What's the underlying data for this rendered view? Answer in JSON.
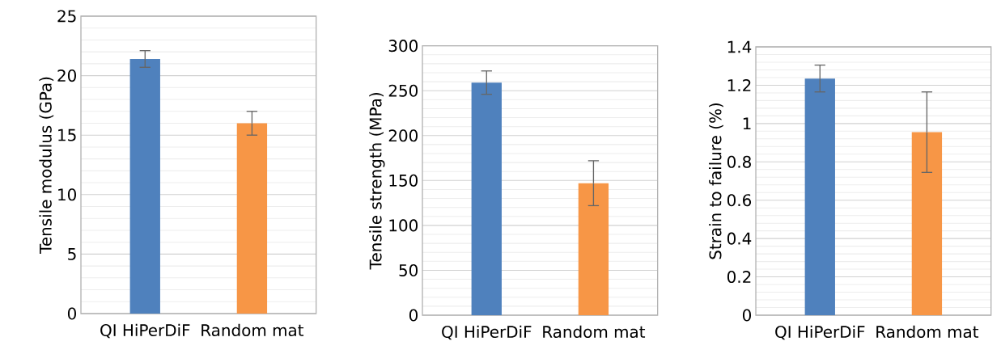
{
  "chart_data": [
    {
      "type": "bar",
      "categories": [
        "QI HiPerDiF",
        "Random mat"
      ],
      "values": [
        21.4,
        16.0
      ],
      "colors": [
        "#4f81bd",
        "#f79646"
      ],
      "errors": [
        0.7,
        1.0
      ],
      "ylabel": "Tensile modulus (GPa)",
      "ylim": [
        0,
        25
      ],
      "yticks": [
        0,
        5,
        10,
        15,
        20,
        25
      ],
      "grid": "y"
    },
    {
      "type": "bar",
      "categories": [
        "QI HiPerDiF",
        "Random mat"
      ],
      "values": [
        259,
        147
      ],
      "colors": [
        "#4f81bd",
        "#f79646"
      ],
      "errors": [
        13,
        25
      ],
      "ylabel": "Tensile strength (MPa)",
      "ylim": [
        0,
        300
      ],
      "yticks": [
        0,
        50,
        100,
        150,
        200,
        250,
        300
      ],
      "grid": "y"
    },
    {
      "type": "bar",
      "categories": [
        "QI HiPerDiF",
        "Random mat"
      ],
      "values": [
        1.235,
        0.955
      ],
      "colors": [
        "#4f81bd",
        "#f79646"
      ],
      "errors": [
        0.07,
        0.21
      ],
      "ylabel": "Strain to failure (%)",
      "ylim": [
        0,
        1.4
      ],
      "yticks": [
        0,
        0.2,
        0.4,
        0.6,
        0.8,
        1,
        1.2,
        1.4
      ],
      "grid": "y"
    }
  ]
}
